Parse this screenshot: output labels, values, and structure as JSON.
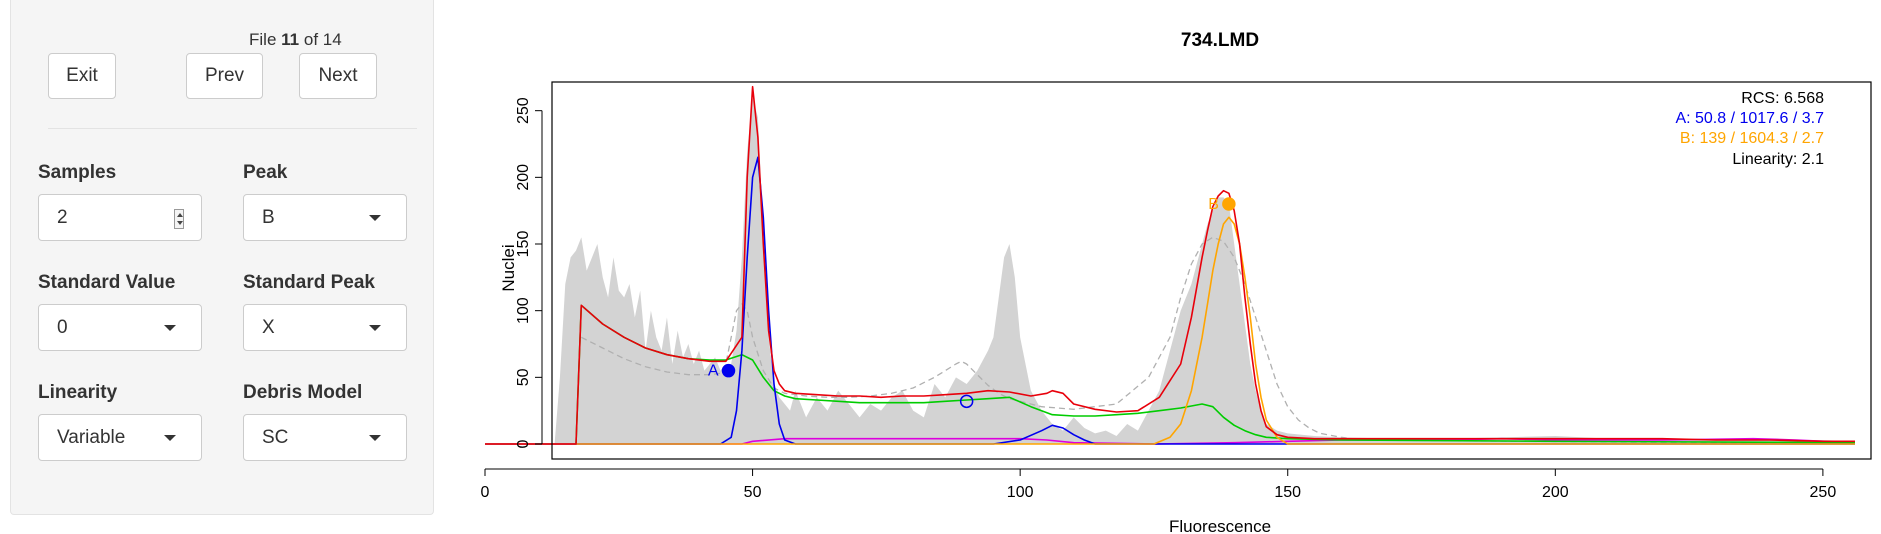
{
  "nav": {
    "file_prefix": "File",
    "file_index": "11",
    "file_of": "of",
    "file_total": "14",
    "exit_label": "Exit",
    "prev_label": "Prev",
    "next_label": "Next"
  },
  "controls": {
    "samples": {
      "label": "Samples",
      "value": "2"
    },
    "peak": {
      "label": "Peak",
      "value": "B"
    },
    "standard_value": {
      "label": "Standard Value",
      "value": "0"
    },
    "standard_peak": {
      "label": "Standard Peak",
      "value": "X"
    },
    "linearity": {
      "label": "Linearity",
      "value": "Variable"
    },
    "debris_model": {
      "label": "Debris Model",
      "value": "SC"
    }
  },
  "chart_data": {
    "type": "line",
    "title": "734.LMD",
    "xlabel": "Fluorescence",
    "ylabel": "Nuclei",
    "xlim": [
      0,
      256
    ],
    "ylim": [
      0,
      265
    ],
    "xticks": [
      0,
      50,
      100,
      150,
      200,
      250
    ],
    "yticks": [
      0,
      50,
      100,
      150,
      200,
      250
    ],
    "grid": false,
    "legend": {
      "placement": "top-right",
      "rcs_label": "RCS:",
      "rcs_value": "6.568",
      "peak_a": "A:  50.8 / 1017.6 / 3.7",
      "peak_b": "B:  139 / 1604.3 / 2.7",
      "linearity_label": "Linearity:",
      "linearity_value": "2.1"
    },
    "colors": {
      "histogram": "#d3d3d3",
      "model_fit": "#e8000b",
      "peak_a": "#0000ee",
      "peak_b": "#ffa500",
      "debris": "#00cc00",
      "aggregate": "#dd00dd",
      "initial_guess": "#b0b0b0",
      "axis": "#000000"
    },
    "peak_markers": [
      {
        "label": "A",
        "x": 45.5,
        "y": 55,
        "color": "#0000ee",
        "filled": true
      },
      {
        "label": "B",
        "x": 139,
        "y": 180,
        "color": "#ffa500",
        "filled": true
      },
      {
        "label": "",
        "x": 90,
        "y": 32,
        "color": "#0000ee",
        "filled": false
      }
    ],
    "series": [
      {
        "role": "histogram",
        "x": [
          13,
          14,
          15,
          16,
          17,
          18,
          19,
          20,
          21,
          22,
          23,
          24,
          25,
          26,
          27,
          28,
          29,
          30,
          31,
          32,
          33,
          34,
          35,
          36,
          37,
          38,
          39,
          40,
          41,
          42,
          43,
          44,
          45,
          46,
          47,
          48,
          49,
          50,
          51,
          52,
          53,
          54,
          55,
          56,
          57,
          58,
          60,
          62,
          64,
          66,
          68,
          70,
          72,
          74,
          76,
          78,
          80,
          82,
          84,
          86,
          88,
          90,
          92,
          94,
          95,
          96,
          97,
          98,
          99,
          100,
          102,
          104,
          106,
          108,
          110,
          112,
          114,
          116,
          118,
          120,
          122,
          124,
          126,
          128,
          130,
          132,
          134,
          135,
          136,
          137,
          138,
          139,
          140,
          141,
          142,
          143,
          144,
          145,
          146,
          148,
          150,
          155,
          160,
          170,
          180,
          190,
          200,
          210,
          220,
          230,
          240,
          250,
          256
        ],
        "y": [
          0,
          50,
          120,
          140,
          145,
          155,
          130,
          140,
          150,
          125,
          110,
          140,
          115,
          110,
          120,
          95,
          115,
          70,
          100,
          80,
          70,
          95,
          60,
          85,
          65,
          75,
          60,
          70,
          55,
          60,
          65,
          55,
          60,
          60,
          85,
          140,
          220,
          260,
          245,
          160,
          80,
          45,
          35,
          30,
          25,
          40,
          20,
          35,
          25,
          40,
          30,
          20,
          30,
          25,
          35,
          40,
          25,
          20,
          45,
          35,
          50,
          45,
          55,
          70,
          80,
          110,
          140,
          150,
          125,
          80,
          40,
          25,
          15,
          10,
          20,
          12,
          8,
          10,
          6,
          15,
          10,
          25,
          40,
          70,
          100,
          120,
          150,
          165,
          175,
          185,
          185,
          180,
          150,
          120,
          90,
          60,
          40,
          25,
          15,
          10,
          8,
          6,
          5,
          4,
          4,
          5,
          6,
          4,
          4,
          3,
          3,
          3,
          2
        ]
      },
      {
        "role": "model_fit",
        "x": [
          0,
          17,
          18,
          22,
          26,
          30,
          34,
          38,
          42,
          45,
          48,
          49,
          50,
          51,
          52,
          53,
          54,
          55,
          56,
          58,
          62,
          66,
          70,
          74,
          78,
          82,
          86,
          90,
          94,
          98,
          102,
          105,
          106,
          108,
          110,
          114,
          118,
          122,
          126,
          130,
          132,
          134,
          135,
          136,
          137,
          138,
          139,
          140,
          141,
          142,
          143,
          144,
          145,
          146,
          148,
          150,
          155,
          160,
          170,
          180,
          190,
          200,
          210,
          220,
          230,
          240,
          250,
          256
        ],
        "y": [
          0,
          0,
          104,
          90,
          80,
          72,
          67,
          64,
          62,
          62,
          80,
          200,
          268,
          230,
          150,
          85,
          55,
          45,
          40,
          38,
          37,
          36,
          36,
          35,
          36,
          36,
          37,
          38,
          40,
          39,
          36,
          38,
          40,
          38,
          30,
          26,
          24,
          25,
          35,
          60,
          95,
          140,
          160,
          178,
          186,
          190,
          188,
          175,
          150,
          110,
          75,
          45,
          25,
          13,
          7,
          5,
          4,
          4,
          4,
          4,
          4,
          4,
          4,
          4,
          3,
          3,
          2,
          2
        ]
      },
      {
        "role": "debris",
        "x": [
          17,
          18,
          22,
          26,
          30,
          34,
          38,
          42,
          45,
          48,
          50,
          52,
          54,
          56,
          58,
          62,
          66,
          70,
          74,
          78,
          82,
          86,
          90,
          94,
          98,
          102,
          106,
          110,
          114,
          118,
          122,
          126,
          130,
          134,
          136,
          138,
          140,
          142,
          144,
          146,
          150,
          160,
          200,
          256
        ],
        "y": [
          0,
          104,
          90,
          80,
          72,
          67,
          64,
          63,
          63,
          67,
          63,
          50,
          40,
          36,
          34,
          33,
          32,
          31,
          31,
          31,
          31,
          32,
          33,
          34,
          35,
          28,
          22,
          21,
          21,
          22,
          23,
          25,
          27,
          30,
          28,
          20,
          14,
          10,
          7,
          5,
          4,
          3,
          2,
          1
        ]
      },
      {
        "role": "peak_a",
        "x": [
          0,
          44,
          46,
          47,
          48,
          49,
          50,
          51,
          52,
          53,
          54,
          55,
          56,
          58,
          60,
          95,
          100,
          104,
          106,
          108,
          110,
          112,
          114,
          256
        ],
        "y": [
          0,
          0,
          5,
          25,
          70,
          140,
          200,
          215,
          170,
          100,
          45,
          15,
          3,
          0,
          0,
          0,
          3,
          10,
          14,
          12,
          7,
          3,
          0,
          0
        ]
      },
      {
        "role": "peak_b",
        "x": [
          0,
          125,
          128,
          130,
          132,
          134,
          135,
          136,
          137,
          138,
          139,
          140,
          141,
          142,
          143,
          144,
          145,
          146,
          148,
          150,
          256
        ],
        "y": [
          0,
          0,
          5,
          15,
          40,
          80,
          105,
          130,
          150,
          165,
          170,
          165,
          150,
          125,
          95,
          60,
          35,
          18,
          5,
          0,
          0
        ]
      },
      {
        "role": "aggregate",
        "x": [
          0,
          48,
          50,
          56,
          70,
          90,
          100,
          105,
          110,
          125,
          140,
          150,
          160,
          180,
          190,
          200,
          220,
          237,
          245,
          256
        ],
        "y": [
          0,
          0,
          2,
          4,
          4,
          4,
          4,
          3,
          1,
          0,
          1,
          2,
          3,
          3,
          4,
          3,
          3,
          4,
          3,
          1
        ]
      },
      {
        "role": "initial_guess",
        "x": [
          18,
          22,
          26,
          30,
          34,
          38,
          42,
          44,
          45,
          46,
          47,
          48,
          49,
          50,
          52,
          54,
          56,
          60,
          64,
          68,
          72,
          76,
          80,
          84,
          86,
          88,
          89,
          90,
          92,
          94,
          96,
          98,
          100,
          104,
          110,
          118,
          124,
          128,
          130,
          132,
          134,
          136,
          138,
          140,
          142,
          144,
          146,
          148,
          150,
          152,
          154,
          156,
          160,
          164,
          256
        ],
        "y": [
          80,
          72,
          64,
          58,
          54,
          52,
          52,
          53,
          60,
          80,
          100,
          105,
          100,
          80,
          55,
          42,
          38,
          36,
          35,
          35,
          36,
          38,
          42,
          50,
          55,
          60,
          62,
          60,
          52,
          44,
          38,
          34,
          32,
          28,
          26,
          30,
          50,
          80,
          110,
          135,
          150,
          155,
          152,
          140,
          120,
          95,
          70,
          45,
          28,
          18,
          12,
          8,
          5,
          3,
          0
        ]
      }
    ]
  }
}
